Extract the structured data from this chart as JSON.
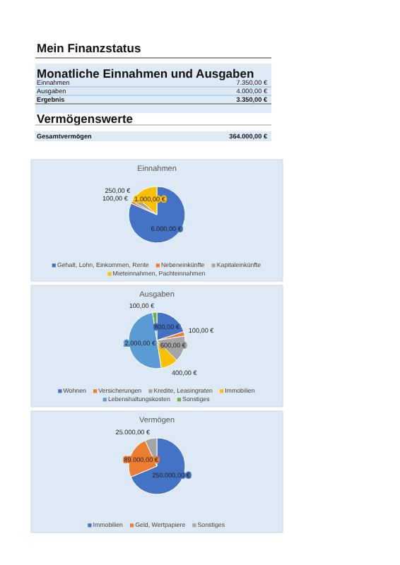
{
  "chart_data": [
    {
      "type": "other",
      "title": "Mein Finanzstatus",
      "annotations": [
        "Monatliche Einnahmen und Ausgaben",
        "Einnahmen",
        "7.350,00 €",
        "Ausgaben",
        "4.000,00 €",
        "Ergebnis",
        "3.350,00 €",
        "Vermögenswerte",
        "Gesamtvermögen",
        "364.000,00 €"
      ]
    },
    {
      "type": "pie",
      "title": "Einnahmen",
      "categories": [
        "Gehalt, Lohn, Einkommen, Rente",
        "Nebeneinkünfte",
        "Kapitaleinkünfte",
        "Mieteinnahmen, Pachteinnahmen"
      ],
      "values": [
        6000,
        100,
        250,
        1000
      ],
      "value_labels": [
        "6.000,00 €",
        "100,00 €",
        "250,00 €",
        "1.000,00 €"
      ],
      "colors": [
        "#4472c4",
        "#ed7d31",
        "#a5a5a5",
        "#ffc000"
      ],
      "legend": "bottom"
    },
    {
      "type": "pie",
      "title": "Ausgaben",
      "categories": [
        "Wohnen",
        "Versicherungen",
        "Kredite, Leasingraten",
        "Immobilien",
        "Lebenshaltungskosten",
        "Sonstiges"
      ],
      "values": [
        800,
        100,
        600,
        400,
        2000,
        100
      ],
      "value_labels": [
        "800,00 €",
        "100,00 €",
        "600,00 €",
        "400,00 €",
        "2.000,00 €",
        "100,00 €"
      ],
      "colors": [
        "#4472c4",
        "#ed7d31",
        "#a5a5a5",
        "#ffc000",
        "#5b9bd5",
        "#70ad47"
      ],
      "legend": "bottom"
    },
    {
      "type": "pie",
      "title": "Vermögen",
      "categories": [
        "Immobilien",
        "Geld, Wertpapiere",
        "Sonstiges"
      ],
      "values": [
        250000,
        89000,
        25000
      ],
      "value_labels": [
        "250.000,00 €",
        "89.000,00 €",
        "25.000,00 €"
      ],
      "colors": [
        "#4472c4",
        "#ed7d31",
        "#a5a5a5"
      ],
      "legend": "bottom"
    }
  ]
}
